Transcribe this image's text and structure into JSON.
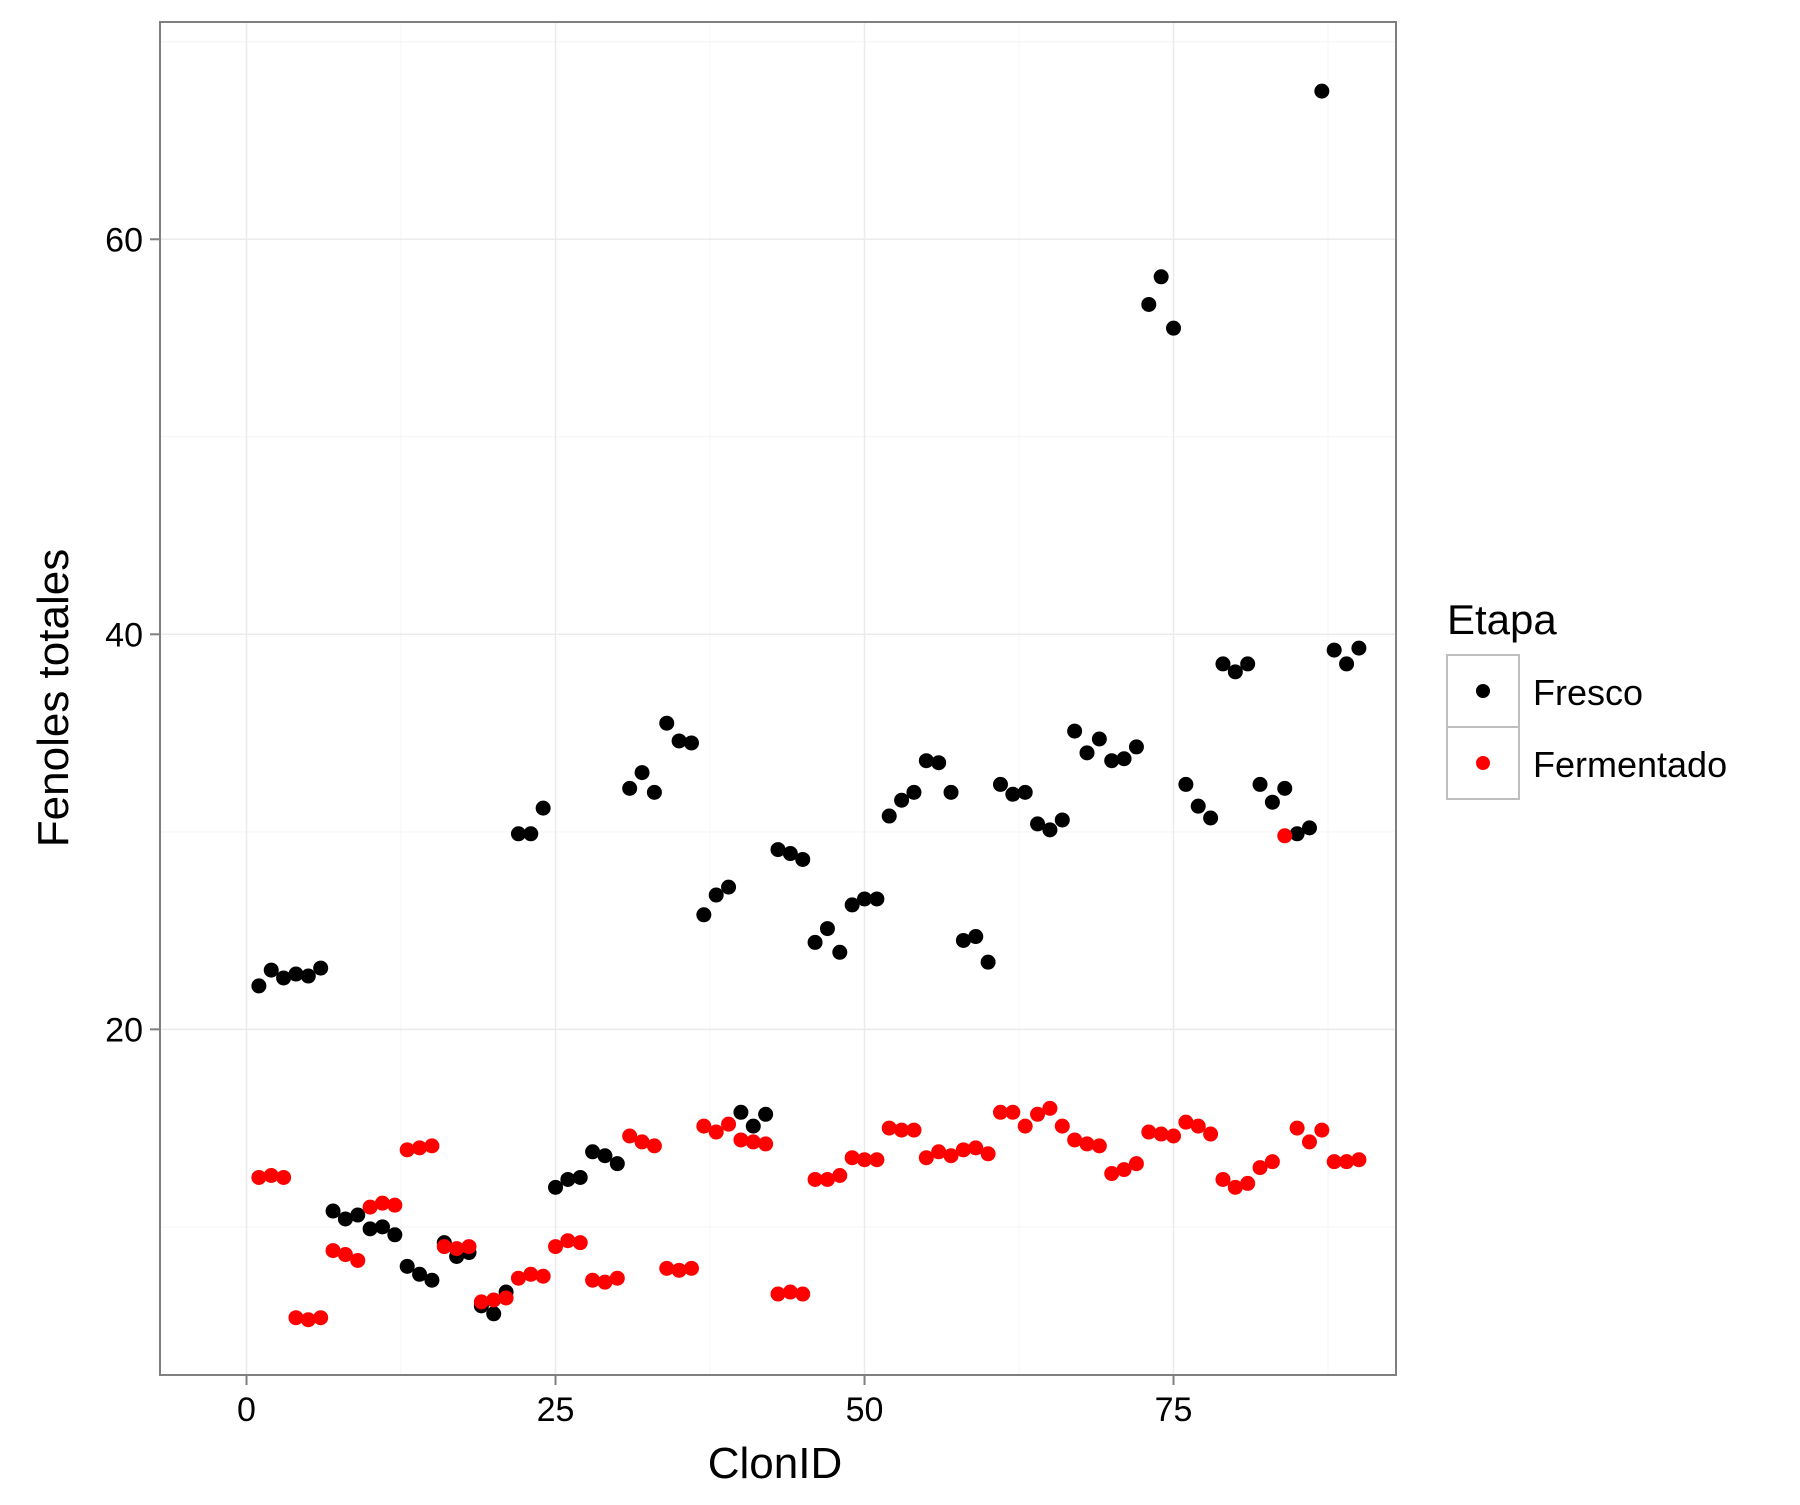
{
  "chart_data": {
    "type": "scatter",
    "title": "",
    "xlabel": "ClonID",
    "ylabel": "Fenoles totales",
    "xlim": [
      -7,
      93
    ],
    "ylim": [
      2.5,
      71
    ],
    "x_ticks": [
      0,
      25,
      50,
      75
    ],
    "y_ticks": [
      20,
      40,
      60
    ],
    "grid": true,
    "legend": {
      "title": "Etapa",
      "placement": "right"
    },
    "series": [
      {
        "name": "Fresco",
        "color": "#000000",
        "points": [
          [
            1,
            22.2
          ],
          [
            2,
            23.0
          ],
          [
            3,
            22.6
          ],
          [
            4,
            22.8
          ],
          [
            5,
            22.7
          ],
          [
            6,
            23.1
          ],
          [
            7,
            10.8
          ],
          [
            8,
            10.4
          ],
          [
            9,
            10.6
          ],
          [
            10,
            9.9
          ],
          [
            11,
            10.0
          ],
          [
            12,
            9.6
          ],
          [
            13,
            8.0
          ],
          [
            14,
            7.6
          ],
          [
            15,
            7.3
          ],
          [
            16,
            9.2
          ],
          [
            17,
            8.5
          ],
          [
            18,
            8.7
          ],
          [
            19,
            6.0
          ],
          [
            20,
            5.6
          ],
          [
            21,
            6.7
          ],
          [
            22,
            29.9
          ],
          [
            23,
            29.9
          ],
          [
            24,
            31.2
          ],
          [
            25,
            12.0
          ],
          [
            26,
            12.4
          ],
          [
            27,
            12.5
          ],
          [
            28,
            13.8
          ],
          [
            29,
            13.6
          ],
          [
            30,
            13.2
          ],
          [
            31,
            32.2
          ],
          [
            32,
            33.0
          ],
          [
            33,
            32.0
          ],
          [
            34,
            35.5
          ],
          [
            35,
            34.6
          ],
          [
            36,
            34.5
          ],
          [
            37,
            25.8
          ],
          [
            38,
            26.8
          ],
          [
            39,
            27.2
          ],
          [
            40,
            15.8
          ],
          [
            41,
            15.1
          ],
          [
            42,
            15.7
          ],
          [
            43,
            29.1
          ],
          [
            44,
            28.9
          ],
          [
            45,
            28.6
          ],
          [
            46,
            24.4
          ],
          [
            47,
            25.1
          ],
          [
            48,
            23.9
          ],
          [
            49,
            26.3
          ],
          [
            50,
            26.6
          ],
          [
            51,
            26.6
          ],
          [
            52,
            30.8
          ],
          [
            53,
            31.6
          ],
          [
            54,
            32.0
          ],
          [
            55,
            33.6
          ],
          [
            56,
            33.5
          ],
          [
            57,
            32.0
          ],
          [
            58,
            24.5
          ],
          [
            59,
            24.7
          ],
          [
            60,
            23.4
          ],
          [
            61,
            32.4
          ],
          [
            62,
            31.9
          ],
          [
            63,
            32.0
          ],
          [
            64,
            30.4
          ],
          [
            65,
            30.1
          ],
          [
            66,
            30.6
          ],
          [
            67,
            35.1
          ],
          [
            68,
            34.0
          ],
          [
            69,
            34.7
          ],
          [
            70,
            33.6
          ],
          [
            71,
            33.7
          ],
          [
            72,
            34.3
          ],
          [
            73,
            56.7
          ],
          [
            74,
            58.1
          ],
          [
            75,
            55.5
          ],
          [
            76,
            32.4
          ],
          [
            77,
            31.3
          ],
          [
            78,
            30.7
          ],
          [
            79,
            38.5
          ],
          [
            80,
            38.1
          ],
          [
            81,
            38.5
          ],
          [
            82,
            32.4
          ],
          [
            83,
            31.5
          ],
          [
            84,
            32.2
          ],
          [
            85,
            29.9
          ],
          [
            86,
            30.2
          ],
          [
            87,
            67.5
          ],
          [
            88,
            39.2
          ],
          [
            89,
            38.5
          ],
          [
            90,
            39.3
          ]
        ]
      },
      {
        "name": "Fermentado",
        "color": "#ff0000",
        "points": [
          [
            1,
            12.5
          ],
          [
            2,
            12.6
          ],
          [
            3,
            12.5
          ],
          [
            4,
            5.4
          ],
          [
            5,
            5.3
          ],
          [
            6,
            5.4
          ],
          [
            7,
            8.8
          ],
          [
            8,
            8.6
          ],
          [
            9,
            8.3
          ],
          [
            10,
            11.0
          ],
          [
            11,
            11.2
          ],
          [
            12,
            11.1
          ],
          [
            13,
            13.9
          ],
          [
            14,
            14.0
          ],
          [
            15,
            14.1
          ],
          [
            16,
            9.0
          ],
          [
            17,
            8.9
          ],
          [
            18,
            9.0
          ],
          [
            19,
            6.2
          ],
          [
            20,
            6.3
          ],
          [
            21,
            6.4
          ],
          [
            22,
            7.4
          ],
          [
            23,
            7.6
          ],
          [
            24,
            7.5
          ],
          [
            25,
            9.0
          ],
          [
            26,
            9.3
          ],
          [
            27,
            9.2
          ],
          [
            28,
            7.3
          ],
          [
            29,
            7.2
          ],
          [
            30,
            7.4
          ],
          [
            31,
            14.6
          ],
          [
            32,
            14.3
          ],
          [
            33,
            14.1
          ],
          [
            34,
            7.9
          ],
          [
            35,
            7.8
          ],
          [
            36,
            7.9
          ],
          [
            37,
            15.1
          ],
          [
            38,
            14.8
          ],
          [
            39,
            15.2
          ],
          [
            40,
            14.4
          ],
          [
            41,
            14.3
          ],
          [
            42,
            14.2
          ],
          [
            43,
            6.6
          ],
          [
            44,
            6.7
          ],
          [
            45,
            6.6
          ],
          [
            46,
            12.4
          ],
          [
            47,
            12.4
          ],
          [
            48,
            12.6
          ],
          [
            49,
            13.5
          ],
          [
            50,
            13.4
          ],
          [
            51,
            13.4
          ],
          [
            52,
            15.0
          ],
          [
            53,
            14.9
          ],
          [
            54,
            14.9
          ],
          [
            55,
            13.5
          ],
          [
            56,
            13.8
          ],
          [
            57,
            13.6
          ],
          [
            58,
            13.9
          ],
          [
            59,
            14.0
          ],
          [
            60,
            13.7
          ],
          [
            61,
            15.8
          ],
          [
            62,
            15.8
          ],
          [
            63,
            15.1
          ],
          [
            64,
            15.7
          ],
          [
            65,
            16.0
          ],
          [
            66,
            15.1
          ],
          [
            67,
            14.4
          ],
          [
            68,
            14.2
          ],
          [
            69,
            14.1
          ],
          [
            70,
            12.7
          ],
          [
            71,
            12.9
          ],
          [
            72,
            13.2
          ],
          [
            73,
            14.8
          ],
          [
            74,
            14.7
          ],
          [
            75,
            14.6
          ],
          [
            76,
            15.3
          ],
          [
            77,
            15.1
          ],
          [
            78,
            14.7
          ],
          [
            79,
            12.4
          ],
          [
            80,
            12.0
          ],
          [
            81,
            12.2
          ],
          [
            82,
            13.0
          ],
          [
            83,
            13.3
          ],
          [
            84,
            29.8
          ],
          [
            85,
            15.0
          ],
          [
            86,
            14.3
          ],
          [
            87,
            14.9
          ],
          [
            88,
            13.3
          ],
          [
            89,
            13.3
          ],
          [
            90,
            13.4
          ]
        ]
      }
    ]
  }
}
